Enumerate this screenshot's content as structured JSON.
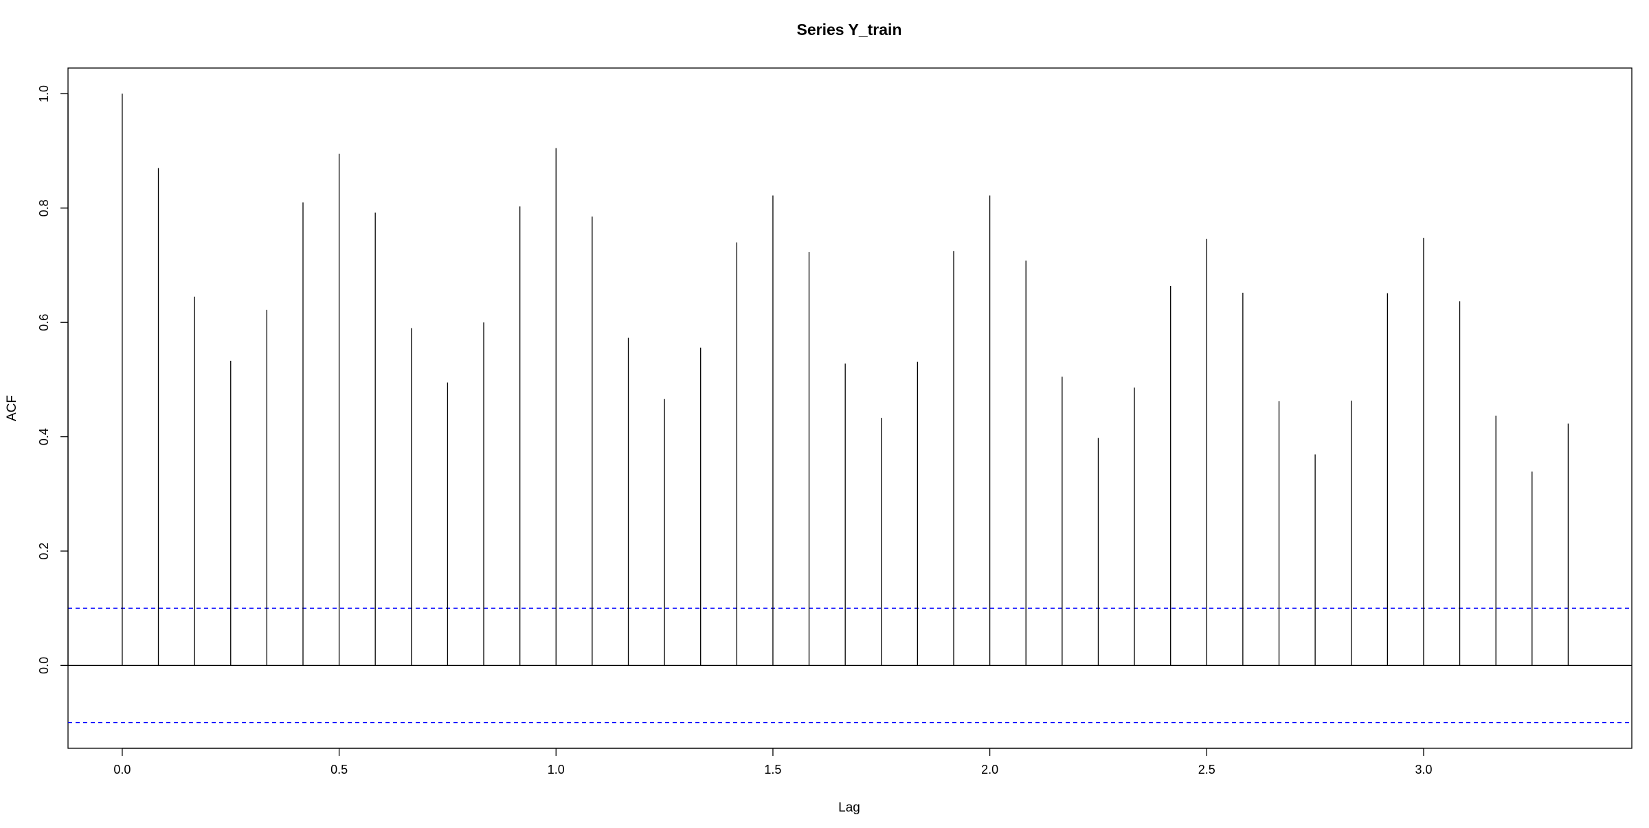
{
  "chart_data": {
    "type": "bar",
    "title": "Series  Y_train",
    "xlabel": "Lag",
    "ylabel": "ACF",
    "xlim": [
      -0.125,
      3.48
    ],
    "ylim": [
      -0.145,
      1.045
    ],
    "x_ticks": [
      0.0,
      0.5,
      1.0,
      1.5,
      2.0,
      2.5,
      3.0
    ],
    "x_tick_labels": [
      "0.0",
      "0.5",
      "1.0",
      "1.5",
      "2.0",
      "2.5",
      "3.0"
    ],
    "y_ticks": [
      0.0,
      0.2,
      0.4,
      0.6,
      0.8,
      1.0
    ],
    "y_tick_labels": [
      "0.0",
      "0.2",
      "0.4",
      "0.6",
      "0.8",
      "1.0"
    ],
    "confidence_bounds": [
      0.1,
      -0.1
    ],
    "confidence_line_color": "#0000ff",
    "bar_color": "#000000",
    "grid": false,
    "x": [
      0.0,
      0.0833,
      0.1667,
      0.25,
      0.3333,
      0.4167,
      0.5,
      0.5833,
      0.6667,
      0.75,
      0.8333,
      0.9167,
      1.0,
      1.0833,
      1.1667,
      1.25,
      1.3333,
      1.4167,
      1.5,
      1.5833,
      1.6667,
      1.75,
      1.8333,
      1.9167,
      2.0,
      2.0833,
      2.1667,
      2.25,
      2.3333,
      2.4167,
      2.5,
      2.5833,
      2.6667,
      2.75,
      2.8333,
      2.9167,
      3.0,
      3.0833,
      3.1667,
      3.25,
      3.3333
    ],
    "values": [
      1.0,
      0.87,
      0.645,
      0.533,
      0.622,
      0.81,
      0.895,
      0.792,
      0.59,
      0.495,
      0.6,
      0.803,
      0.905,
      0.785,
      0.573,
      0.466,
      0.556,
      0.74,
      0.822,
      0.723,
      0.528,
      0.433,
      0.531,
      0.725,
      0.822,
      0.708,
      0.505,
      0.398,
      0.486,
      0.664,
      0.746,
      0.652,
      0.462,
      0.369,
      0.463,
      0.651,
      0.748,
      0.637,
      0.437,
      0.339,
      0.423
    ]
  }
}
